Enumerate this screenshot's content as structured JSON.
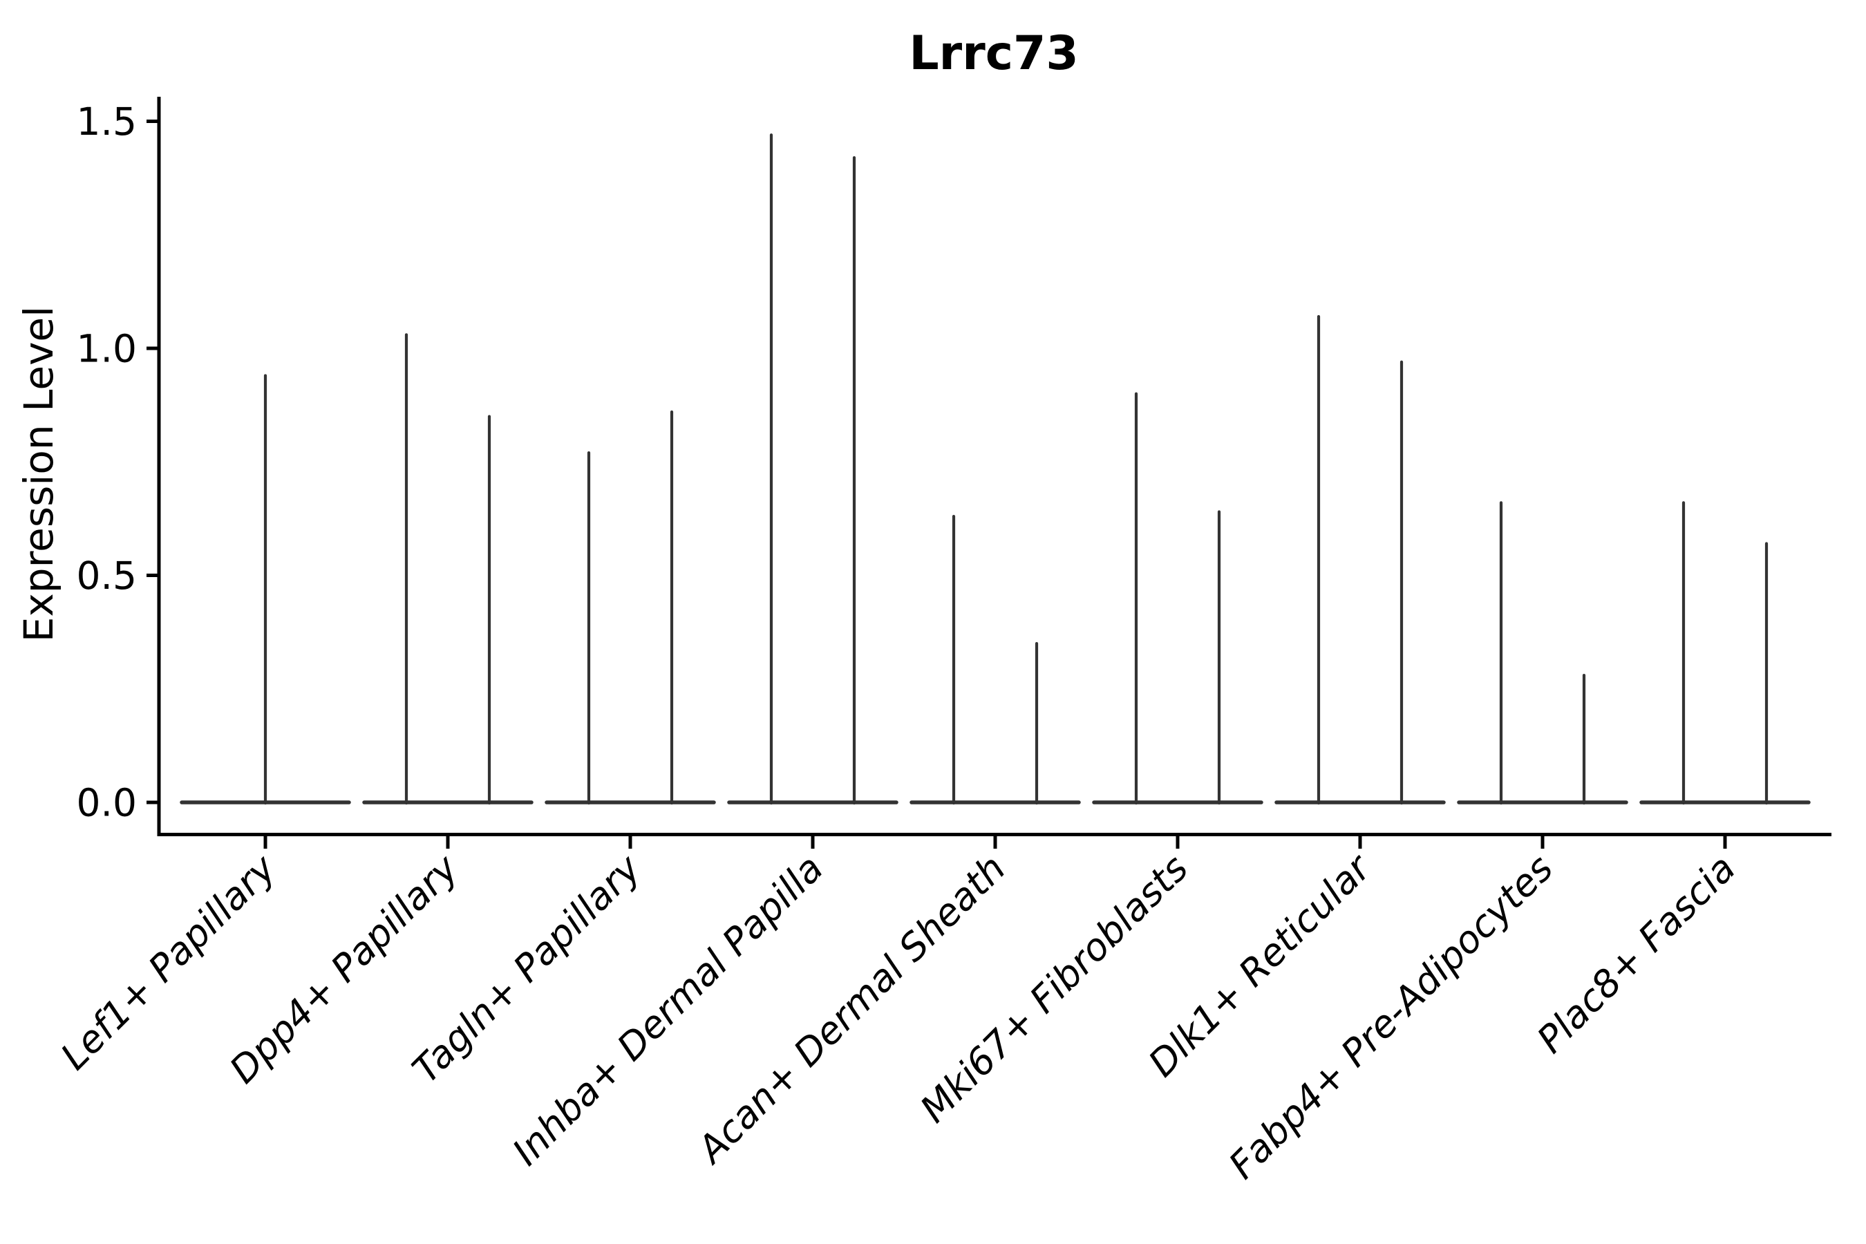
{
  "title": "Lrrc73",
  "y_axis": {
    "label": "Expression Level",
    "ticks": [
      {
        "label": "0.0",
        "value": 0.0
      },
      {
        "label": "0.5",
        "value": 0.5
      },
      {
        "label": "1.0",
        "value": 1.0
      },
      {
        "label": "1.5",
        "value": 1.5
      }
    ]
  },
  "categories": [
    {
      "label": "Lef1+ Papillary",
      "spikes": [
        0.94
      ]
    },
    {
      "label": "Dpp4+ Papillary",
      "spikes": [
        1.03,
        0.85
      ]
    },
    {
      "label": "Tagln+ Papillary",
      "spikes": [
        0.77,
        0.86
      ]
    },
    {
      "label": "Inhba+ Dermal Papilla",
      "spikes": [
        1.47,
        1.42
      ]
    },
    {
      "label": "Acan+ Dermal Sheath",
      "spikes": [
        0.63,
        0.35
      ]
    },
    {
      "label": "Mki67+ Fibroblasts",
      "spikes": [
        0.9,
        0.64
      ]
    },
    {
      "label": "Dlk1+ Reticular",
      "spikes": [
        1.07,
        0.97
      ]
    },
    {
      "label": "Fabp4+ Pre-Adipocytes",
      "spikes": [
        0.66,
        0.28
      ]
    },
    {
      "label": "Plac8+ Fascia",
      "spikes": [
        0.66,
        0.57
      ]
    }
  ],
  "colors": {
    "violin": "#333333",
    "axis": "#000000",
    "text": "#000000",
    "background": "#ffffff"
  },
  "chart_data": {
    "type": "violin",
    "title": "Lrrc73",
    "xlabel": "",
    "ylabel": "Expression Level",
    "ylim": [
      -0.07,
      1.54
    ],
    "yticks": [
      0.0,
      0.5,
      1.0,
      1.5
    ],
    "grid": false,
    "legend": null,
    "categories": [
      "Lef1+ Papillary",
      "Dpp4+ Papillary",
      "Tagln+ Papillary",
      "Inhba+ Dermal Papilla",
      "Acan+ Dermal Sheath",
      "Mki67+ Fibroblasts",
      "Dlk1+ Reticular",
      "Fabp4+ Pre-Adipocytes",
      "Plac8+ Fascia"
    ],
    "violins_per_category": [
      1,
      2,
      2,
      2,
      2,
      2,
      2,
      2,
      2
    ],
    "spike_max_values": [
      [
        0.94
      ],
      [
        1.03,
        0.85
      ],
      [
        0.77,
        0.86
      ],
      [
        1.47,
        1.42
      ],
      [
        0.63,
        0.35
      ],
      [
        0.9,
        0.64
      ],
      [
        1.07,
        0.97
      ],
      [
        0.66,
        0.28
      ],
      [
        0.66,
        0.57
      ]
    ],
    "description": "Violin plot of Lrrc73 expression per fibroblast subtype; nearly all density collapses onto a flat baseline at 0 with thin spikes reaching each violin's maximum expression value."
  }
}
